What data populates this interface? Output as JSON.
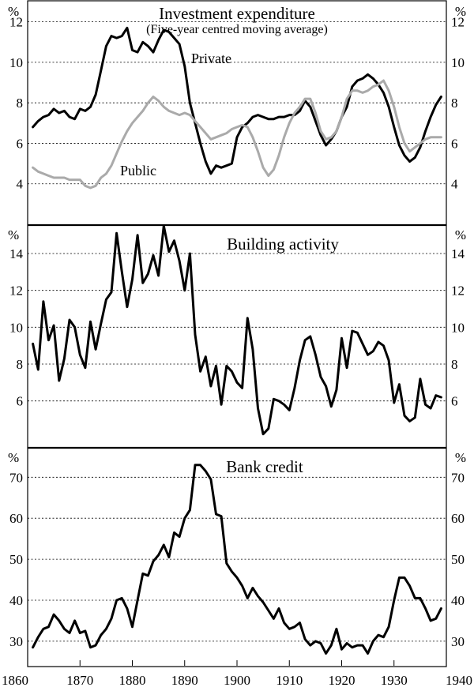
{
  "chart_data": [
    {
      "type": "line",
      "title": "Investment expenditure",
      "subtitle": "(Five-year centred moving average)",
      "ylabel": "%",
      "ylim": [
        2,
        13
      ],
      "yticks": [
        4,
        6,
        8,
        10,
        12
      ],
      "grid": true,
      "x": [
        1861,
        1862,
        1863,
        1864,
        1865,
        1866,
        1867,
        1868,
        1869,
        1870,
        1871,
        1872,
        1873,
        1874,
        1875,
        1876,
        1877,
        1878,
        1879,
        1880,
        1881,
        1882,
        1883,
        1884,
        1885,
        1886,
        1887,
        1888,
        1889,
        1890,
        1891,
        1892,
        1893,
        1894,
        1895,
        1896,
        1897,
        1898,
        1899,
        1900,
        1901,
        1902,
        1903,
        1904,
        1905,
        1906,
        1907,
        1908,
        1909,
        1910,
        1911,
        1912,
        1913,
        1914,
        1915,
        1916,
        1917,
        1918,
        1919,
        1920,
        1921,
        1922,
        1923,
        1924,
        1925,
        1926,
        1927,
        1928,
        1929,
        1930,
        1931,
        1932,
        1933,
        1934,
        1935,
        1936,
        1937,
        1938,
        1939
      ],
      "series": [
        {
          "name": "Private",
          "color": "#000000",
          "values": [
            6.8,
            7.1,
            7.3,
            7.4,
            7.7,
            7.5,
            7.6,
            7.3,
            7.2,
            7.7,
            7.6,
            7.8,
            8.4,
            9.6,
            10.8,
            11.3,
            11.2,
            11.3,
            11.7,
            10.6,
            10.5,
            11.0,
            10.8,
            10.5,
            11.1,
            11.6,
            11.5,
            11.2,
            10.9,
            9.8,
            8.0,
            7.0,
            6.0,
            5.1,
            4.5,
            4.9,
            4.8,
            4.9,
            5.0,
            6.3,
            6.8,
            7.0,
            7.3,
            7.4,
            7.3,
            7.2,
            7.2,
            7.3,
            7.3,
            7.4,
            7.4,
            7.6,
            8.1,
            7.8,
            7.1,
            6.4,
            5.9,
            6.2,
            6.6,
            7.3,
            7.8,
            8.8,
            9.1,
            9.2,
            9.4,
            9.2,
            8.9,
            8.5,
            7.8,
            6.8,
            5.9,
            5.4,
            5.1,
            5.3,
            5.8,
            6.6,
            7.3,
            7.9,
            8.3
          ]
        },
        {
          "name": "Public",
          "color": "#aaaaaa",
          "values": [
            4.8,
            4.6,
            4.5,
            4.4,
            4.3,
            4.3,
            4.3,
            4.2,
            4.2,
            4.2,
            3.9,
            3.8,
            3.9,
            4.3,
            4.5,
            4.9,
            5.5,
            6.1,
            6.6,
            7.0,
            7.3,
            7.6,
            8.0,
            8.3,
            8.1,
            7.8,
            7.6,
            7.5,
            7.4,
            7.5,
            7.4,
            7.1,
            6.8,
            6.5,
            6.2,
            6.3,
            6.4,
            6.5,
            6.7,
            6.8,
            6.9,
            6.8,
            6.3,
            5.6,
            4.8,
            4.4,
            4.7,
            5.4,
            6.3,
            7.0,
            7.5,
            7.8,
            8.2,
            8.2,
            7.5,
            6.6,
            6.2,
            6.3,
            6.6,
            7.3,
            8.2,
            8.6,
            8.6,
            8.5,
            8.6,
            8.8,
            8.9,
            9.1,
            8.6,
            7.8,
            6.8,
            6.0,
            5.6,
            5.8,
            6.0,
            6.2,
            6.3,
            6.3,
            6.3
          ]
        }
      ],
      "annotations": [
        "Private",
        "Public"
      ]
    },
    {
      "type": "line",
      "title": "Building activity",
      "ylabel": "%",
      "ylim": [
        3.5,
        15.5
      ],
      "yticks": [
        6,
        8,
        10,
        12,
        14
      ],
      "grid": true,
      "x": [
        1861,
        1862,
        1863,
        1864,
        1865,
        1866,
        1867,
        1868,
        1869,
        1870,
        1871,
        1872,
        1873,
        1874,
        1875,
        1876,
        1877,
        1878,
        1879,
        1880,
        1881,
        1882,
        1883,
        1884,
        1885,
        1886,
        1887,
        1888,
        1889,
        1890,
        1891,
        1892,
        1893,
        1894,
        1895,
        1896,
        1897,
        1898,
        1899,
        1900,
        1901,
        1902,
        1903,
        1904,
        1905,
        1906,
        1907,
        1908,
        1909,
        1910,
        1911,
        1912,
        1913,
        1914,
        1915,
        1916,
        1917,
        1918,
        1919,
        1920,
        1921,
        1922,
        1923,
        1924,
        1925,
        1926,
        1927,
        1928,
        1929,
        1930,
        1931,
        1932,
        1933,
        1934,
        1935,
        1936,
        1937,
        1938,
        1939
      ],
      "series": [
        {
          "name": "Building activity",
          "color": "#000000",
          "values": [
            9.1,
            7.7,
            11.4,
            9.3,
            10.1,
            7.1,
            8.3,
            10.4,
            10.0,
            8.5,
            7.8,
            10.3,
            8.8,
            10.2,
            11.5,
            11.9,
            15.1,
            13.0,
            11.1,
            12.6,
            15.0,
            12.4,
            12.9,
            13.9,
            12.8,
            15.5,
            14.1,
            14.7,
            13.6,
            12.0,
            14.0,
            9.6,
            7.6,
            8.4,
            6.8,
            7.9,
            5.8,
            7.9,
            7.6,
            7.0,
            6.7,
            10.5,
            8.8,
            5.6,
            4.2,
            4.5,
            6.1,
            6.0,
            5.8,
            5.5,
            6.7,
            8.2,
            9.3,
            9.5,
            8.5,
            7.3,
            6.8,
            5.7,
            6.6,
            9.4,
            7.8,
            9.8,
            9.7,
            9.1,
            8.5,
            8.7,
            9.2,
            9.0,
            8.2,
            5.9,
            6.9,
            5.2,
            4.9,
            5.1,
            7.2,
            5.8,
            5.6,
            6.3,
            6.2
          ]
        }
      ]
    },
    {
      "type": "line",
      "title": "Bank credit",
      "ylabel": "%",
      "ylim": [
        24,
        77
      ],
      "yticks": [
        30,
        40,
        50,
        60,
        70
      ],
      "grid": true,
      "xlim": [
        1860,
        1940
      ],
      "xticks": [
        1860,
        1870,
        1880,
        1890,
        1900,
        1910,
        1920,
        1930,
        1940
      ],
      "x": [
        1861,
        1862,
        1863,
        1864,
        1865,
        1866,
        1867,
        1868,
        1869,
        1870,
        1871,
        1872,
        1873,
        1874,
        1875,
        1876,
        1877,
        1878,
        1879,
        1880,
        1881,
        1882,
        1883,
        1884,
        1885,
        1886,
        1887,
        1888,
        1889,
        1890,
        1891,
        1892,
        1893,
        1894,
        1895,
        1896,
        1897,
        1898,
        1899,
        1900,
        1901,
        1902,
        1903,
        1904,
        1905,
        1906,
        1907,
        1908,
        1909,
        1910,
        1911,
        1912,
        1913,
        1914,
        1915,
        1916,
        1917,
        1918,
        1919,
        1920,
        1921,
        1922,
        1923,
        1924,
        1925,
        1926,
        1927,
        1928,
        1929,
        1930,
        1931,
        1932,
        1933,
        1934,
        1935,
        1936,
        1937,
        1938,
        1939
      ],
      "series": [
        {
          "name": "Bank credit",
          "color": "#000000",
          "values": [
            28.5,
            31,
            33,
            33.5,
            36.5,
            35,
            33,
            32,
            35,
            32,
            32.5,
            28.5,
            29,
            31.5,
            33,
            35.5,
            40,
            40.5,
            38,
            33.5,
            40,
            46.5,
            46,
            49.5,
            51,
            53.5,
            50.5,
            56.5,
            55.5,
            60,
            62,
            73,
            73,
            71.5,
            69.5,
            61,
            60.5,
            49,
            47,
            45.5,
            43.5,
            40.5,
            43,
            41,
            39.5,
            37.5,
            35.5,
            38,
            34.5,
            33,
            33.5,
            34.5,
            30.5,
            29,
            30,
            29.5,
            27,
            29,
            33,
            28,
            29.5,
            28.5,
            29,
            29,
            27,
            30,
            31.5,
            31,
            33.5,
            40,
            45.5,
            45.5,
            43.5,
            40.5,
            40.5,
            38,
            35,
            35.5,
            38
          ]
        }
      ]
    }
  ]
}
